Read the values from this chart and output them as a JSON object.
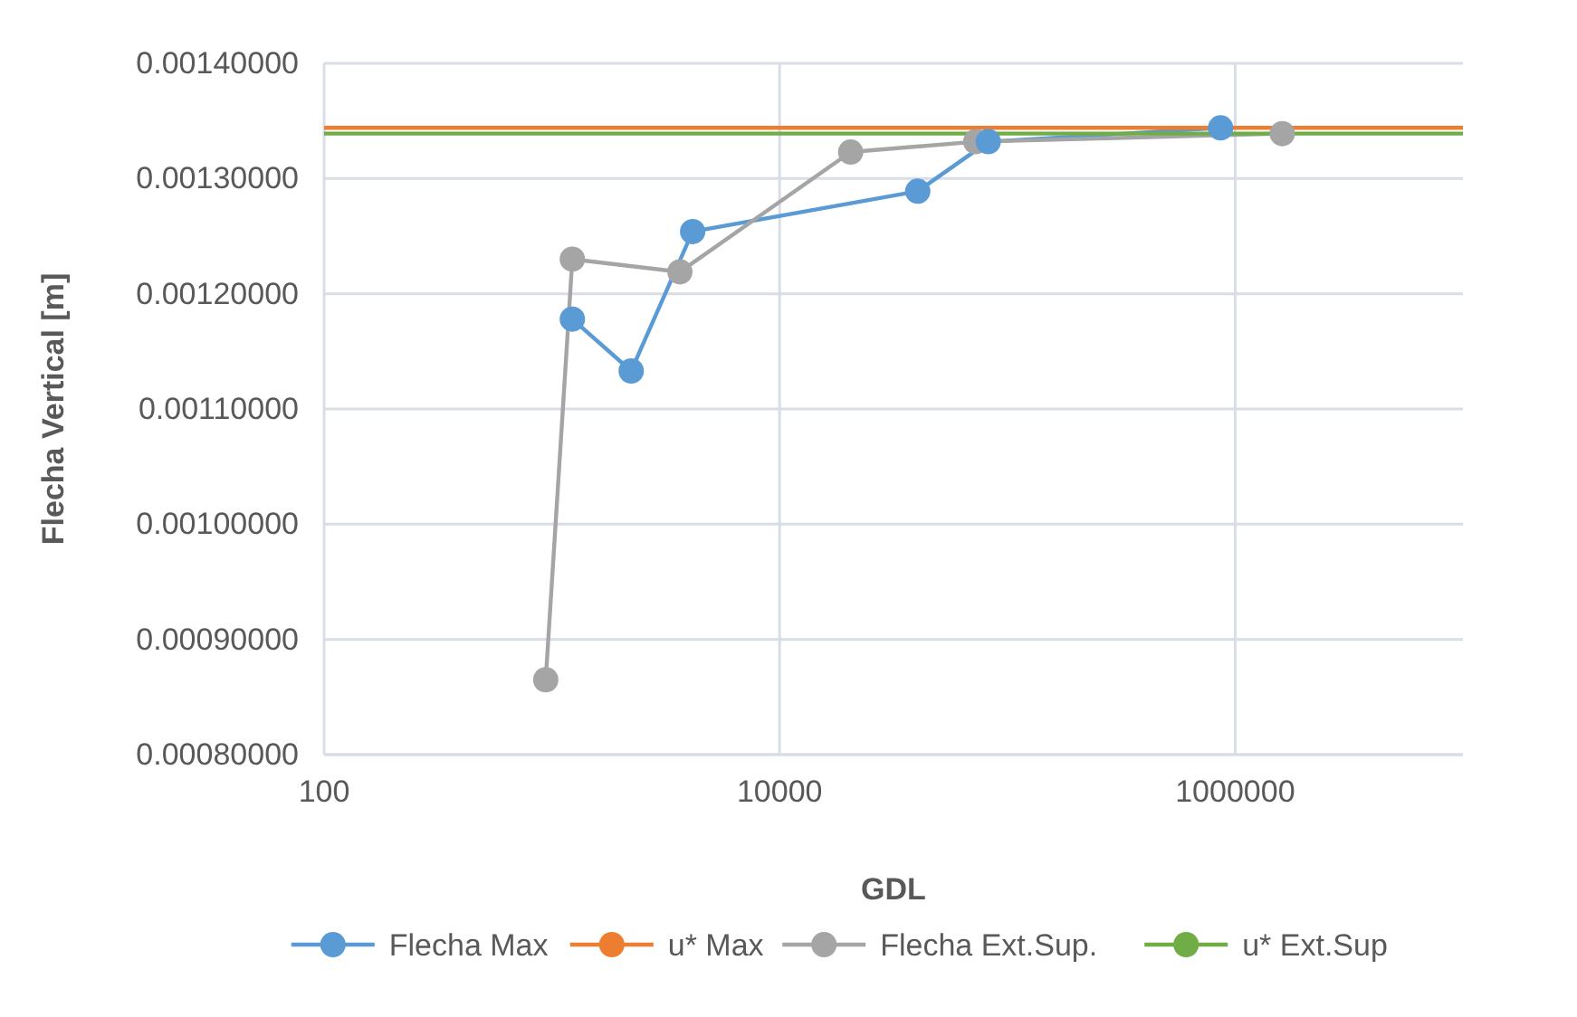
{
  "chart_data": {
    "type": "line",
    "xlabel": "GDL",
    "ylabel": "Flecha Vertical [m]",
    "log": "x",
    "grid": true,
    "legend": "bottom",
    "marker": "circle",
    "xlim": [
      100,
      10000000
    ],
    "xticks": [
      100,
      10000,
      1000000
    ],
    "ylim": [
      0.0008,
      0.0014
    ],
    "yticks": [
      {
        "value": 0.0008,
        "label": "0.00080000"
      },
      {
        "value": 0.0009,
        "label": "0.00090000"
      },
      {
        "value": 0.001,
        "label": "0.00100000"
      },
      {
        "value": 0.0011,
        "label": "0.00110000"
      },
      {
        "value": 0.0012,
        "label": "0.00120000"
      },
      {
        "value": 0.0013,
        "label": "0.00130000"
      },
      {
        "value": 0.0014,
        "label": "0.00140000"
      }
    ],
    "series": [
      {
        "name": "Flecha Max",
        "color": "#5b9bd5",
        "x": [
          1230,
          2230,
          4150,
          40400,
          82400,
          863000
        ],
        "values": [
          0.001178,
          0.001133,
          0.001254,
          0.001289,
          0.001332,
          0.001344
        ]
      },
      {
        "name": "u* Max",
        "color": "#ed7d31",
        "marker": "none",
        "x": [
          100,
          10000000
        ],
        "values": [
          0.001344,
          0.001344
        ]
      },
      {
        "name": "Flecha Ext.Sup.",
        "color": "#a5a5a5",
        "x": [
          940,
          1230,
          3650,
          20500,
          72600,
          1610000
        ],
        "values": [
          0.000865,
          0.00123,
          0.001219,
          0.001323,
          0.001332,
          0.001339
        ]
      },
      {
        "name": "u* Ext.Sup",
        "color": "#70ad47",
        "marker": "none",
        "x": [
          100,
          10000000
        ],
        "values": [
          0.001339,
          0.001339
        ]
      }
    ]
  }
}
